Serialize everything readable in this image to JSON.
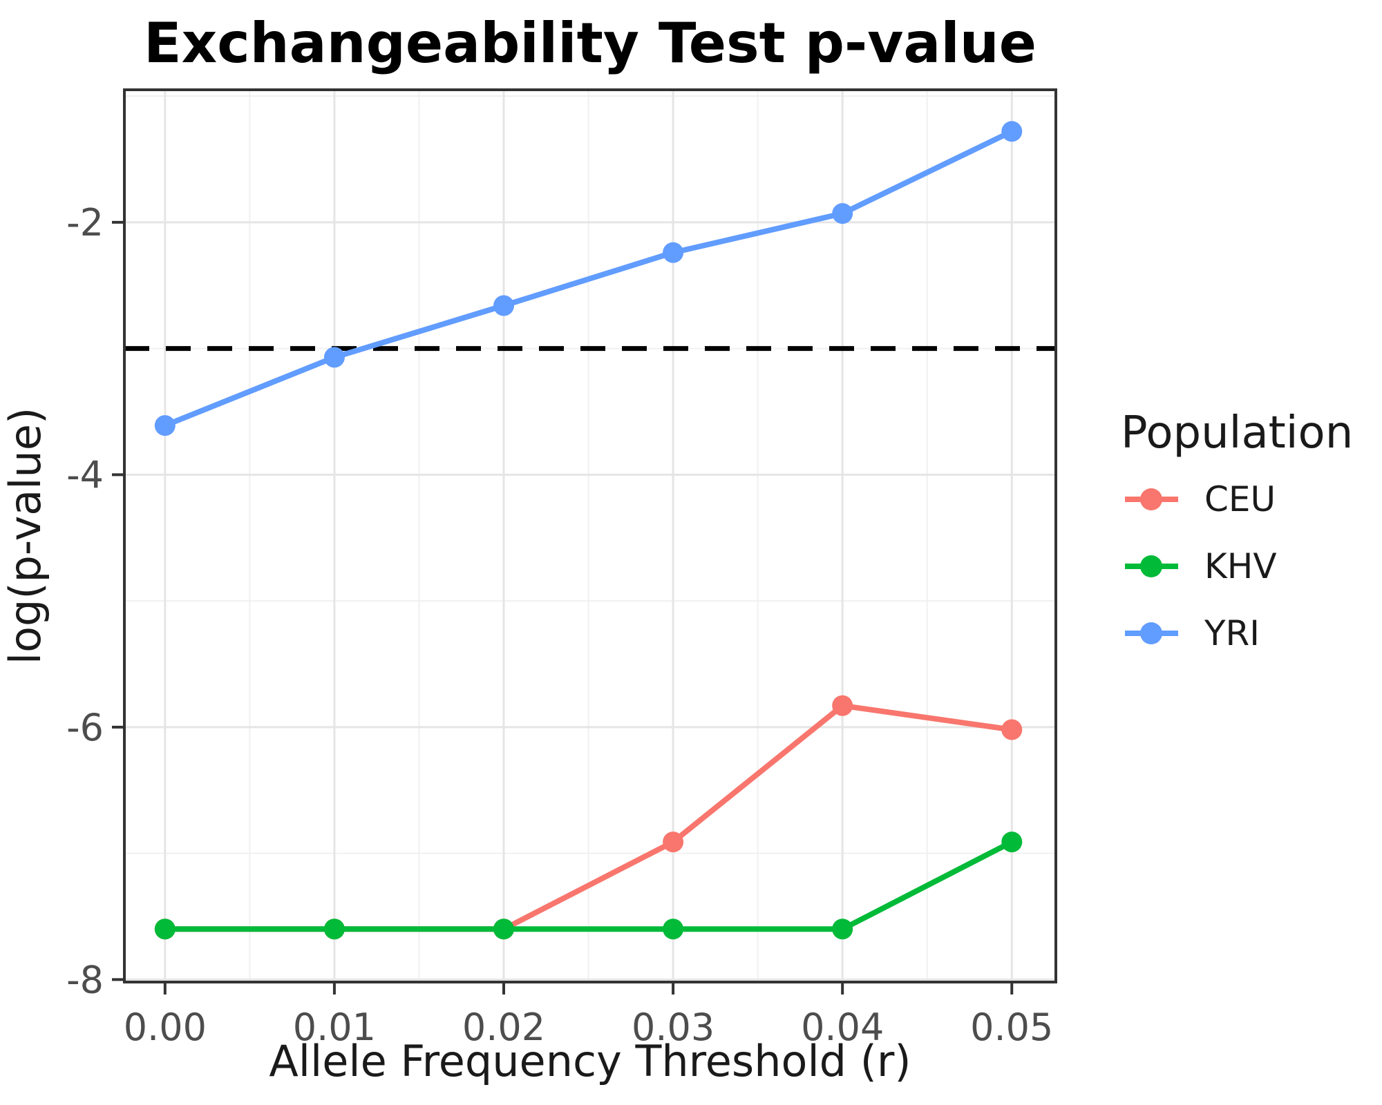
{
  "title": "Exchangeability Test p-value",
  "axes": {
    "x": {
      "label": "Allele Frequency Threshold (r)",
      "tick_labels": [
        "0.00",
        "0.01",
        "0.02",
        "0.03",
        "0.04",
        "0.05"
      ],
      "tick_values": [
        0.0,
        0.01,
        0.02,
        0.03,
        0.04,
        0.05
      ],
      "minor_tick_values": [
        0.005,
        0.015,
        0.025,
        0.035,
        0.045
      ]
    },
    "y": {
      "label": "log(p-value)",
      "tick_labels": [
        "-2",
        "-4",
        "-6",
        "-8"
      ],
      "tick_values": [
        -2,
        -4,
        -6,
        -8
      ],
      "minor_tick_values": [
        -1,
        -3,
        -5,
        -7
      ]
    }
  },
  "legend": {
    "title": "Population",
    "entries": [
      {
        "label": "CEU",
        "color": "#F8766D"
      },
      {
        "label": "KHV",
        "color": "#00BA38"
      },
      {
        "label": "YRI",
        "color": "#619CFF"
      }
    ]
  },
  "reference_line": {
    "value": -3.0,
    "color": "#000000",
    "style": "dashed"
  },
  "colors": {
    "panel_border": "#333333",
    "grid_major": "#E5E5E5",
    "grid_minor": "#F0F0F0",
    "tick_mark": "#333333",
    "background": "#FFFFFF"
  },
  "chart_data": {
    "type": "line",
    "title": "Exchangeability Test p-value",
    "xlabel": "Allele Frequency Threshold (r)",
    "ylabel": "log(p-value)",
    "x": [
      0.0,
      0.01,
      0.02,
      0.03,
      0.04,
      0.05
    ],
    "series": [
      {
        "name": "CEU",
        "color": "#F8766D",
        "values": [
          -7.6,
          -7.6,
          -7.6,
          -6.91,
          -5.83,
          -6.02
        ]
      },
      {
        "name": "KHV",
        "color": "#00BA38",
        "values": [
          -7.6,
          -7.6,
          -7.6,
          -7.6,
          -7.6,
          -6.91
        ]
      },
      {
        "name": "YRI",
        "color": "#619CFF",
        "values": [
          -3.61,
          -3.07,
          -2.66,
          -2.24,
          -1.93,
          -1.28
        ]
      }
    ],
    "reference_line_y": -3.0,
    "xlim": [
      -0.0024,
      0.0526
    ],
    "ylim": [
      -8.02,
      -0.95
    ],
    "grid": true,
    "legend_position": "right",
    "legend_title": "Population"
  }
}
